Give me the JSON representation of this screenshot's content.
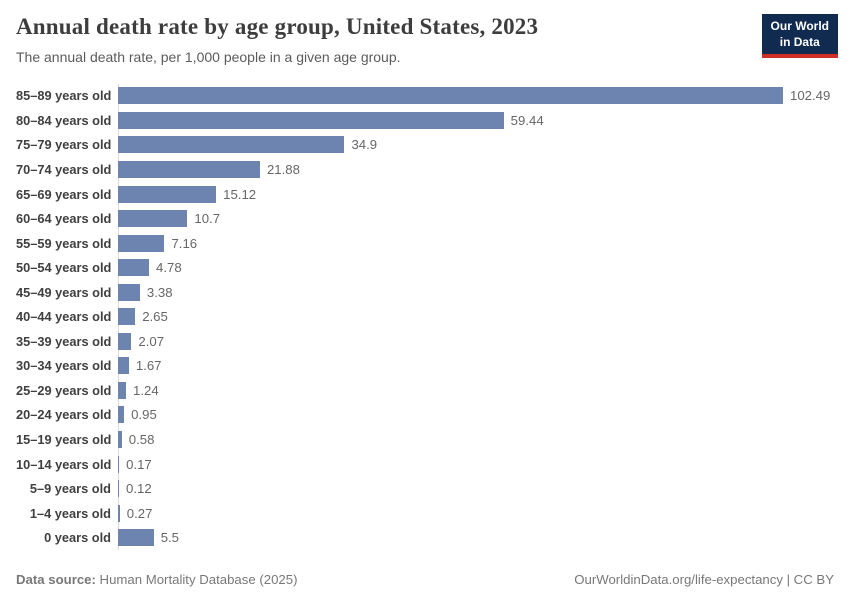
{
  "header": {
    "title": "Annual death rate by age group, United States, 2023",
    "subtitle": "The annual death rate, per 1,000 people in a given age group.",
    "logo": {
      "line1": "Our World",
      "line2": "in Data"
    }
  },
  "chart_data": {
    "type": "bar",
    "orientation": "horizontal",
    "title": "Annual death rate by age group, United States, 2023",
    "subtitle": "The annual death rate, per 1,000 people in a given age group.",
    "categories": [
      "85–89 years old",
      "80–84 years old",
      "75–79 years old",
      "70–74 years old",
      "65–69 years old",
      "60–64 years old",
      "55–59 years old",
      "50–54 years old",
      "45–49 years old",
      "40–44 years old",
      "35–39 years old",
      "30–34 years old",
      "25–29 years old",
      "20–24 years old",
      "15–19 years old",
      "10–14 years old",
      "5–9 years old",
      "1–4 years old",
      "0 years old"
    ],
    "values": [
      102.49,
      59.44,
      34.9,
      21.88,
      15.12,
      10.7,
      7.16,
      4.78,
      3.38,
      2.65,
      2.07,
      1.67,
      1.24,
      0.95,
      0.58,
      0.17,
      0.12,
      0.27,
      5.5
    ],
    "xlabel": "",
    "ylabel": "",
    "xlim": [
      0,
      102.49
    ],
    "grid": false,
    "legend": false,
    "value_labels": true,
    "bar_color": "#6d84b0"
  },
  "footer": {
    "source_label": "Data source:",
    "source_value": " Human Mortality Database (2025)",
    "credit": "OurWorldinData.org/life-expectancy | CC BY"
  },
  "colors": {
    "bar": "#6d84b0",
    "title_text": "#3d3d3d",
    "subtitle_text": "#5b5b5b",
    "value_text": "#666666",
    "footer_text": "#787878",
    "logo_bg": "#102a50",
    "logo_underline": "#cf2e27",
    "axis_line": "#dcdcdc"
  }
}
